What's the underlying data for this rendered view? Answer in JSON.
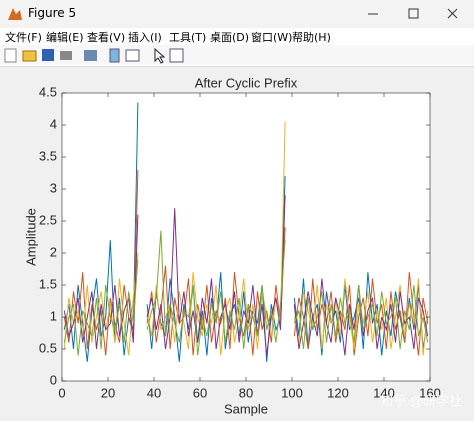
{
  "window": {
    "title": "Figure 5"
  },
  "menu": [
    "文件(F)",
    "编辑(E)",
    "查看(V)",
    "插入(I)",
    "工具(T)",
    "桌面(D)",
    "窗口(W)",
    "帮助(H)"
  ],
  "watermark": "知乎 @研学社",
  "chart_data": {
    "type": "line",
    "title": "After Cyclic Prefix",
    "x_label": "Sample",
    "y_label": "Amplitude",
    "x": [
      1,
      3,
      5,
      7,
      9,
      11,
      13,
      15,
      17,
      19,
      21,
      23,
      25,
      27,
      29,
      31,
      33,
      35,
      37,
      39,
      41,
      43,
      45,
      47,
      49,
      51,
      53,
      55,
      57,
      59,
      61,
      63,
      65,
      67,
      69,
      71,
      73,
      75,
      77,
      79,
      81,
      83,
      85,
      87,
      89,
      91,
      93,
      95,
      97,
      99,
      101,
      103,
      105,
      107,
      109,
      111,
      113,
      115,
      117,
      119,
      121,
      123,
      125,
      127,
      129,
      131,
      133,
      135,
      137,
      139,
      141,
      143,
      145,
      147,
      149,
      151,
      153,
      155,
      157,
      159
    ],
    "series": [
      {
        "name": null,
        "color": "#0072BD",
        "values": [
          0.8,
          1.2,
          0.5,
          1.5,
          0.9,
          0.3,
          1.1,
          1.6,
          0.7,
          1.0,
          2.2,
          0.6,
          1.3,
          0.4,
          1.0,
          0.8,
          4.35,
          null,
          1.2,
          0.5,
          1.4,
          0.9,
          0.7,
          1.6,
          1.0,
          0.3,
          1.2,
          0.8,
          1.5,
          0.6,
          1.1,
          0.4,
          1.3,
          0.9,
          1.7,
          0.5,
          1.0,
          1.2,
          0.7,
          1.4,
          0.6,
          1.1,
          0.9,
          1.5,
          0.3,
          1.2,
          0.8,
          1.0,
          3.2,
          null,
          1.3,
          0.7,
          1.6,
          0.5,
          1.0,
          1.2,
          0.4,
          1.4,
          0.9,
          1.1,
          0.6,
          1.5,
          0.8,
          1.0,
          1.3,
          0.5,
          1.7,
          0.9,
          1.2,
          0.4,
          1.1,
          0.7,
          1.4,
          1.0,
          0.6,
          1.3,
          0.8,
          1.5,
          0.5,
          1.0
        ]
      },
      {
        "name": null,
        "color": "#D95319",
        "values": [
          1.0,
          0.6,
          1.4,
          0.9,
          1.7,
          0.5,
          1.2,
          0.8,
          1.1,
          0.4,
          1.3,
          0.9,
          0.6,
          1.5,
          1.0,
          0.7,
          3.3,
          null,
          0.9,
          1.4,
          0.6,
          1.1,
          1.8,
          0.5,
          1.3,
          0.9,
          1.0,
          1.6,
          0.4,
          1.2,
          0.8,
          1.5,
          0.6,
          1.1,
          0.9,
          1.3,
          0.5,
          1.7,
          1.0,
          0.7,
          1.2,
          0.4,
          1.4,
          0.8,
          1.1,
          0.6,
          1.5,
          0.9,
          2.4,
          null,
          0.7,
          1.3,
          1.0,
          0.5,
          1.6,
          0.8,
          1.2,
          0.9,
          1.4,
          0.6,
          1.1,
          0.8,
          1.5,
          0.4,
          1.0,
          1.3,
          0.7,
          1.6,
          0.9,
          1.2,
          0.5,
          1.4,
          0.8,
          1.1,
          0.6,
          1.7,
          1.0,
          0.4,
          1.3,
          0.9
        ]
      },
      {
        "name": null,
        "color": "#EDB120",
        "values": [
          0.5,
          1.3,
          0.9,
          1.1,
          0.7,
          1.5,
          0.6,
          1.0,
          1.4,
          0.8,
          1.2,
          0.6,
          1.6,
          0.9,
          0.4,
          1.3,
          2.0,
          null,
          1.1,
          0.7,
          1.5,
          0.8,
          1.0,
          1.2,
          0.6,
          1.4,
          0.9,
          0.5,
          1.7,
          1.0,
          0.7,
          1.2,
          0.9,
          1.5,
          0.4,
          1.1,
          1.3,
          0.6,
          1.0,
          1.6,
          0.8,
          1.2,
          0.5,
          1.4,
          1.0,
          0.7,
          1.3,
          0.9,
          4.05,
          null,
          1.0,
          0.6,
          1.4,
          1.1,
          0.8,
          1.5,
          0.5,
          1.2,
          0.9,
          1.3,
          0.7,
          1.6,
          1.0,
          0.5,
          1.2,
          0.9,
          1.4,
          0.6,
          1.1,
          0.8,
          1.3,
          0.5,
          1.0,
          1.5,
          0.7,
          1.2,
          0.9,
          1.6,
          0.4,
          1.1
        ]
      },
      {
        "name": null,
        "color": "#7E2F8E",
        "values": [
          1.1,
          0.7,
          0.9,
          1.3,
          0.6,
          1.0,
          1.4,
          0.5,
          1.2,
          0.8,
          0.9,
          1.5,
          0.7,
          1.1,
          1.3,
          0.6,
          2.6,
          null,
          1.0,
          1.3,
          0.8,
          1.2,
          0.5,
          1.0,
          2.7,
          0.9,
          1.4,
          0.7,
          1.1,
          0.6,
          1.3,
          0.9,
          1.6,
          0.5,
          1.0,
          1.2,
          0.8,
          1.4,
          0.6,
          1.1,
          0.9,
          1.5,
          0.7,
          1.2,
          0.4,
          1.0,
          1.3,
          0.8,
          2.9,
          null,
          1.2,
          0.5,
          0.9,
          1.4,
          1.0,
          0.7,
          1.6,
          0.9,
          0.6,
          1.3,
          1.0,
          0.4,
          1.2,
          0.8,
          1.5,
          0.7,
          1.1,
          1.3,
          0.5,
          1.0,
          0.8,
          1.2,
          0.6,
          1.4,
          0.9,
          1.0,
          0.5,
          1.3,
          1.1,
          0.7
        ]
      },
      {
        "name": null,
        "color": "#77AC30",
        "values": [
          0.6,
          1.0,
          1.2,
          0.4,
          1.1,
          0.9,
          0.7,
          1.3,
          0.5,
          1.5,
          1.0,
          0.8,
          1.2,
          0.6,
          1.4,
          0.9,
          1.9,
          null,
          0.8,
          1.1,
          1.3,
          2.35,
          0.7,
          1.2,
          0.9,
          0.6,
          1.1,
          1.0,
          1.5,
          0.4,
          1.0,
          0.7,
          1.2,
          0.9,
          1.4,
          0.6,
          1.1,
          0.8,
          1.3,
          0.5,
          1.2,
          1.0,
          0.7,
          1.5,
          0.8,
          1.1,
          0.6,
          1.2,
          2.2,
          null,
          0.9,
          1.1,
          0.5,
          1.3,
          0.8,
          1.0,
          1.4,
          0.6,
          1.2,
          0.7,
          1.3,
          0.9,
          1.1,
          0.6,
          1.5,
          0.8,
          1.0,
          1.2,
          0.7,
          1.4,
          0.9,
          1.0,
          1.3,
          0.5,
          1.1,
          0.8,
          1.5,
          0.7,
          1.0,
          0.6
        ]
      }
    ],
    "xlim": [
      0,
      160
    ],
    "xticks": [
      0,
      20,
      40,
      60,
      80,
      100,
      120,
      140,
      160
    ],
    "ylim": [
      0,
      4.5
    ],
    "yticks": [
      0,
      0.5,
      1,
      1.5,
      2,
      2.5,
      3,
      3.5,
      4,
      4.5
    ]
  }
}
